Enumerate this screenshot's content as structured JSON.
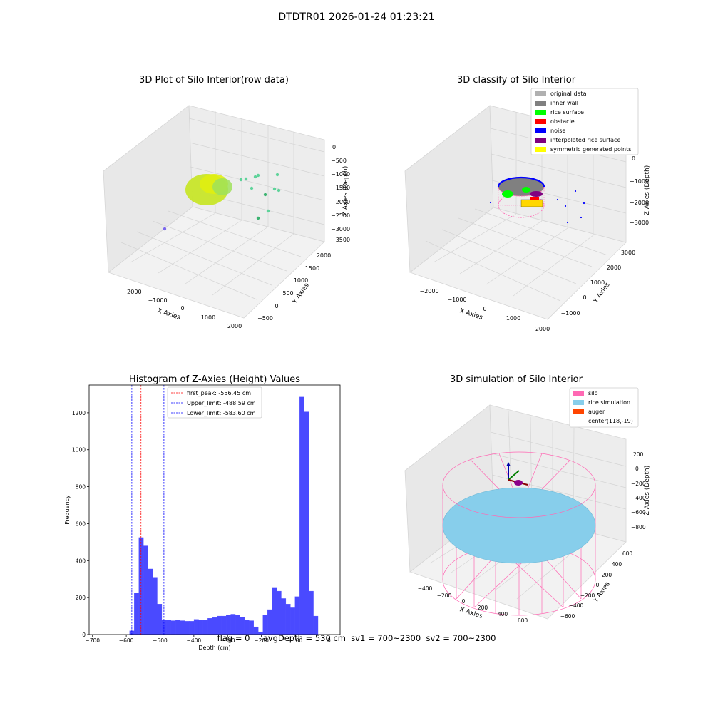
{
  "figure": {
    "suptitle": "DTDTR01 2026-01-24 01:23:21",
    "status_line": "flag = 0     avgDepth = 530 cm  sv1 = 700~2300  sv2 = 700~2300"
  },
  "colors": {
    "hist_bar": "#4a4aff",
    "first_peak_line": "#ff0000",
    "limit_line": "#0000ff",
    "pane_face": "#f2f2f2",
    "grid": "#d0d0d0",
    "silo": "#ff69b4",
    "rice_simulation": "#87ceeb",
    "auger": "#ff4500",
    "rice_surface": "#00ff00",
    "raw_points": "#c8e62a"
  },
  "chart_data": [
    {
      "type": "scatter",
      "title": "3D Plot of Silo Interior(row data)",
      "xlabel": "X Axies",
      "ylabel": "Y Axies",
      "zlabel": "Z Axies (Depth)",
      "x_ticks": [
        "−2000",
        "−1000",
        "0",
        "1000",
        "2000"
      ],
      "y_ticks": [
        "−500",
        "0",
        "500",
        "1000",
        "1500",
        "2000"
      ],
      "z_ticks": [
        "0",
        "−500",
        "−1000",
        "−1500",
        "−2000",
        "−2500",
        "−3000",
        "−3500"
      ]
    },
    {
      "type": "scatter",
      "title": "3D classify of Silo Interior",
      "xlabel": "X Axies",
      "ylabel": "Y Axies",
      "zlabel": "Z Axies (Depth)",
      "x_ticks": [
        "−2000",
        "−1000",
        "0",
        "1000",
        "2000"
      ],
      "y_ticks": [
        "−1000",
        "0",
        "1000",
        "2000",
        "3000"
      ],
      "z_ticks": [
        "0",
        "−1000",
        "−2000",
        "−3000"
      ],
      "legend_position": "top-right",
      "legend": [
        {
          "label": "original data",
          "color": "#b0b0b0"
        },
        {
          "label": "inner wall",
          "color": "#808080"
        },
        {
          "label": "rice surface",
          "color": "#00ff00"
        },
        {
          "label": "obstacle",
          "color": "#ff0000"
        },
        {
          "label": "noise",
          "color": "#0000ff"
        },
        {
          "label": "interpolated rice surface",
          "color": "#800080"
        },
        {
          "label": "symmetric generated points",
          "color": "#ffff00"
        }
      ]
    },
    {
      "type": "bar",
      "title": "Histogram of Z-Axies (Height) Values",
      "xlabel": "Depth (cm)",
      "ylabel": "Frequency",
      "xlim": [
        -710,
        33
      ],
      "ylim": [
        0,
        1350
      ],
      "x_ticks": [
        -700,
        -600,
        -500,
        -400,
        -300,
        -200,
        -100,
        0
      ],
      "x_tick_labels": [
        "−700",
        "−600",
        "−500",
        "−400",
        "−300",
        "−200",
        "−100",
        "0"
      ],
      "y_ticks": [
        0,
        200,
        400,
        600,
        800,
        1000,
        1200
      ],
      "bin_start": -590,
      "bin_width": 13.6,
      "values": [
        20,
        225,
        525,
        480,
        355,
        310,
        165,
        80,
        80,
        75,
        80,
        75,
        72,
        72,
        82,
        78,
        80,
        88,
        92,
        100,
        100,
        105,
        110,
        105,
        95,
        78,
        75,
        42,
        15,
        105,
        135,
        255,
        235,
        195,
        165,
        145,
        205,
        1285,
        1205,
        235,
        100
      ],
      "vlines": [
        {
          "x": -556.45,
          "label": "first_peak: -556.45 cm",
          "style": "red"
        },
        {
          "x": -488.59,
          "label": "Upper_limit: -488.59 cm",
          "style": "blue"
        },
        {
          "x": -583.6,
          "label": "Lower_limit: -583.60 cm",
          "style": "blue"
        }
      ],
      "legend_position": "top-center"
    },
    {
      "type": "scatter",
      "title": "3D simulation of Silo Interior",
      "xlabel": "X Axies",
      "ylabel": "Y Axies",
      "zlabel": "Z Axies (Depth)",
      "x_ticks": [
        "−400",
        "−200",
        "0",
        "200",
        "400",
        "600"
      ],
      "y_ticks": [
        "−600",
        "−400",
        "−200",
        "0",
        "200",
        "400",
        "600"
      ],
      "z_ticks": [
        "200",
        "0",
        "−200",
        "−400",
        "−600",
        "−800"
      ],
      "legend_position": "top-right",
      "legend": [
        {
          "label": "silo",
          "color": "#ff69b4"
        },
        {
          "label": "rice simulation",
          "color": "#87ceeb"
        },
        {
          "label": "auger",
          "color": "#ff4500"
        },
        {
          "label": "center(118,-19)",
          "color": ""
        }
      ]
    }
  ]
}
